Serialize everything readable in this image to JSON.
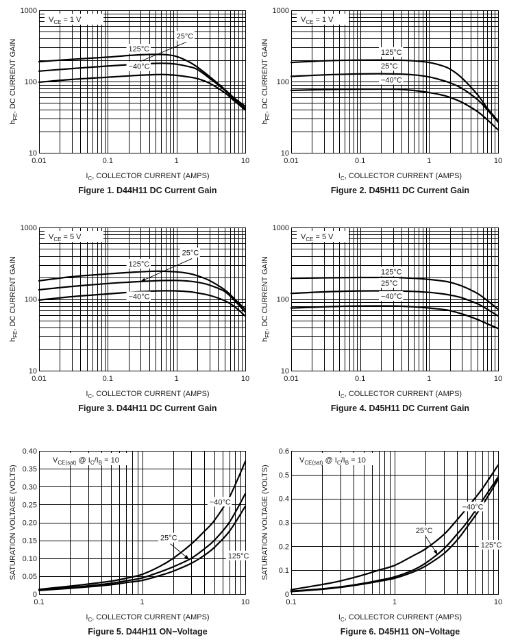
{
  "chart_data": [
    {
      "id": "fig1",
      "type": "line",
      "title": "Figure 1. D44H11 DC Current Gain",
      "xlabel": "I_C, COLLECTOR CURRENT (AMPS)",
      "xlabel_main": "I",
      "xlabel_sub": "C",
      "xlabel_rest": ", COLLECTOR CURRENT (AMPS)",
      "ylabel_main": "h",
      "ylabel_sub": "FE",
      "ylabel_rest": ", DC CURRENT GAIN",
      "xscale": "log",
      "yscale": "log",
      "xlim": [
        0.01,
        10
      ],
      "ylim": [
        10,
        1000
      ],
      "xticks": [
        0.01,
        0.1,
        1,
        10
      ],
      "xtick_labels": [
        "0.01",
        "0.1",
        "1",
        "10"
      ],
      "yticks": [
        10,
        100,
        1000
      ],
      "ytick_labels": [
        "10",
        "100",
        "1000"
      ],
      "grid": true,
      "condition": {
        "main": "V",
        "sub": "CE",
        "rest": " = 1 V"
      },
      "series": [
        {
          "name": "125°C",
          "x": [
            0.01,
            0.03,
            0.1,
            0.2,
            0.4,
            0.7,
            1,
            1.5,
            2,
            3,
            5,
            7,
            10
          ],
          "y": [
            190,
            205,
            220,
            232,
            240,
            238,
            225,
            190,
            160,
            118,
            78,
            58,
            45
          ]
        },
        {
          "name": "25°C",
          "x": [
            0.01,
            0.03,
            0.1,
            0.2,
            0.5,
            0.7,
            1,
            1.5,
            2,
            3,
            5,
            7,
            10
          ],
          "y": [
            140,
            152,
            165,
            172,
            180,
            180,
            175,
            162,
            148,
            112,
            76,
            56,
            42
          ]
        },
        {
          "name": "-40°C",
          "x": [
            0.01,
            0.03,
            0.1,
            0.2,
            0.5,
            0.7,
            1,
            1.5,
            2,
            3,
            5,
            7,
            10
          ],
          "y": [
            98,
            107,
            115,
            120,
            125,
            125,
            122,
            116,
            110,
            95,
            70,
            53,
            40
          ]
        }
      ],
      "annotations": [
        {
          "text": "125°C",
          "x": 0.2,
          "y": 265,
          "arrow": false
        },
        {
          "text": "25°C",
          "x": 1.0,
          "y": 400,
          "arrow": true,
          "arrow_to": [
            0.23,
            173
          ]
        },
        {
          "text": "−40°C",
          "x": 0.2,
          "y": 150,
          "arrow": false
        }
      ]
    },
    {
      "id": "fig2",
      "type": "line",
      "title": "Figure 2. D45H11 DC Current Gain",
      "xlabel": "I_C, COLLECTOR CURRENT (AMPS)",
      "xlabel_main": "I",
      "xlabel_sub": "C",
      "xlabel_rest": ", COLLECTOR CURRENT (AMPS)",
      "ylabel_main": "h",
      "ylabel_sub": "FE",
      "ylabel_rest": ", DC CURRENT GAIN",
      "xscale": "log",
      "yscale": "log",
      "xlim": [
        0.01,
        10
      ],
      "ylim": [
        10,
        1000
      ],
      "xticks": [
        0.01,
        0.1,
        1,
        10
      ],
      "xtick_labels": [
        "0.01",
        "0.1",
        "1",
        "10"
      ],
      "yticks": [
        10,
        100,
        1000
      ],
      "ytick_labels": [
        "10",
        "100",
        "1000"
      ],
      "grid": true,
      "condition": {
        "main": "V",
        "sub": "CE",
        "rest": " = 1 V"
      },
      "series": [
        {
          "name": "125°C",
          "x": [
            0.01,
            0.03,
            0.1,
            0.3,
            0.6,
            1,
            1.5,
            2,
            3,
            5,
            7,
            10
          ],
          "y": [
            185,
            195,
            200,
            200,
            195,
            185,
            168,
            150,
            112,
            66,
            42,
            28
          ]
        },
        {
          "name": "25°C",
          "x": [
            0.01,
            0.03,
            0.1,
            0.3,
            0.6,
            1,
            1.5,
            2,
            3,
            5,
            7,
            10
          ],
          "y": [
            118,
            124,
            128,
            128,
            124,
            116,
            105,
            96,
            80,
            56,
            40,
            27
          ]
        },
        {
          "name": "-40°C",
          "x": [
            0.01,
            0.03,
            0.1,
            0.3,
            0.6,
            1,
            1.5,
            2,
            3,
            5,
            7,
            10
          ],
          "y": [
            75,
            77,
            78,
            78,
            75,
            70,
            65,
            60,
            51,
            38,
            29,
            21
          ]
        }
      ],
      "annotations": [
        {
          "text": "125°C",
          "x": 0.2,
          "y": 238,
          "arrow": false
        },
        {
          "text": "25°C",
          "x": 0.2,
          "y": 152,
          "arrow": false
        },
        {
          "text": "−40°C",
          "x": 0.2,
          "y": 97,
          "arrow": false
        }
      ]
    },
    {
      "id": "fig3",
      "type": "line",
      "title": "Figure 3. D44H11 DC Current Gain",
      "xlabel": "I_C, COLLECTOR CURRENT (AMPS)",
      "xlabel_main": "I",
      "xlabel_sub": "C",
      "xlabel_rest": ", COLLECTOR CURRENT (AMPS)",
      "ylabel_main": "h",
      "ylabel_sub": "FE",
      "ylabel_rest": ", DC CURRENT GAIN",
      "xscale": "log",
      "yscale": "log",
      "xlim": [
        0.01,
        10
      ],
      "ylim": [
        10,
        1000
      ],
      "xticks": [
        0.01,
        0.1,
        1,
        10
      ],
      "xtick_labels": [
        "0.01",
        "0.1",
        "1",
        "10"
      ],
      "yticks": [
        10,
        100,
        1000
      ],
      "ytick_labels": [
        "10",
        "100",
        "1000"
      ],
      "grid": true,
      "condition": {
        "main": "V",
        "sub": "CE",
        "rest": " = 5 V"
      },
      "series": [
        {
          "name": "125°C",
          "x": [
            0.01,
            0.03,
            0.1,
            0.2,
            0.5,
            1,
            1.5,
            2,
            3,
            5,
            7,
            10
          ],
          "y": [
            180,
            205,
            225,
            235,
            245,
            240,
            228,
            212,
            182,
            135,
            100,
            72
          ]
        },
        {
          "name": "25°C",
          "x": [
            0.01,
            0.03,
            0.1,
            0.2,
            0.5,
            1,
            1.5,
            2,
            3,
            5,
            7,
            10
          ],
          "y": [
            135,
            150,
            165,
            172,
            180,
            182,
            178,
            172,
            157,
            128,
            95,
            66
          ]
        },
        {
          "name": "-40°C",
          "x": [
            0.01,
            0.03,
            0.1,
            0.2,
            0.5,
            1,
            1.5,
            2,
            3,
            5,
            7,
            10
          ],
          "y": [
            97,
            108,
            118,
            124,
            130,
            130,
            127,
            122,
            113,
            95,
            78,
            58
          ]
        }
      ],
      "annotations": [
        {
          "text": "125°C",
          "x": 0.2,
          "y": 285,
          "arrow": false
        },
        {
          "text": "25°C",
          "x": 1.2,
          "y": 410,
          "arrow": true,
          "arrow_to": [
            0.3,
            176
          ]
        },
        {
          "text": "−40°C",
          "x": 0.2,
          "y": 100,
          "arrow": false
        }
      ]
    },
    {
      "id": "fig4",
      "type": "line",
      "title": "Figure 4. D45H11 DC Current Gain",
      "xlabel": "I_C, COLLECTOR CURRENT (AMPS)",
      "xlabel_main": "I",
      "xlabel_sub": "C",
      "xlabel_rest": ", COLLECTOR CURRENT (AMPS)",
      "ylabel_main": "h",
      "ylabel_sub": "FE",
      "ylabel_rest": ", DC CURRENT GAIN",
      "xscale": "log",
      "yscale": "log",
      "xlim": [
        0.01,
        10
      ],
      "ylim": [
        10,
        1000
      ],
      "xticks": [
        0.01,
        0.1,
        1,
        10
      ],
      "xtick_labels": [
        "0.01",
        "0.1",
        "1",
        "10"
      ],
      "yticks": [
        10,
        100,
        1000
      ],
      "ytick_labels": [
        "10",
        "100",
        "1000"
      ],
      "grid": true,
      "condition": {
        "main": "V",
        "sub": "CE",
        "rest": " = 5 V"
      },
      "series": [
        {
          "name": "125°C",
          "x": [
            0.01,
            0.03,
            0.1,
            0.3,
            0.6,
            1,
            1.5,
            2,
            3,
            5,
            7,
            10
          ],
          "y": [
            195,
            198,
            200,
            200,
            195,
            188,
            180,
            172,
            152,
            120,
            95,
            72
          ]
        },
        {
          "name": "25°C",
          "x": [
            0.01,
            0.03,
            0.1,
            0.3,
            0.6,
            1,
            1.5,
            2,
            3,
            5,
            7,
            10
          ],
          "y": [
            120,
            126,
            130,
            130,
            128,
            124,
            119,
            114,
            104,
            86,
            72,
            58
          ]
        },
        {
          "name": "-40°C",
          "x": [
            0.01,
            0.03,
            0.1,
            0.3,
            0.6,
            1,
            1.5,
            2,
            3,
            5,
            7,
            10
          ],
          "y": [
            75,
            78,
            80,
            80,
            78,
            75,
            72,
            69,
            62,
            52,
            45,
            39
          ]
        }
      ],
      "annotations": [
        {
          "text": "125°C",
          "x": 0.2,
          "y": 222,
          "arrow": false
        },
        {
          "text": "25°C",
          "x": 0.2,
          "y": 154,
          "arrow": false
        },
        {
          "text": "−40°C",
          "x": 0.2,
          "y": 101,
          "arrow": false
        }
      ]
    },
    {
      "id": "fig5",
      "type": "line",
      "title": "Figure 5. D44H11 ON−Voltage",
      "xlabel": "I_C, COLLECTOR CURRENT (AMPS)",
      "xlabel_main": "I",
      "xlabel_sub": "C",
      "xlabel_rest": ", COLLECTOR CURRENT (AMPS)",
      "ylabel_main": "SATURATION VOLTAGE (VOLTS)",
      "ylabel_sub": "",
      "ylabel_rest": "",
      "xscale": "log",
      "yscale": "linear",
      "xlim": [
        0.1,
        10
      ],
      "ylim": [
        0,
        0.4
      ],
      "xticks": [
        0.1,
        1,
        10
      ],
      "xtick_labels": [
        "0.1",
        "1",
        "10"
      ],
      "yticks": [
        0,
        0.05,
        0.1,
        0.15,
        0.2,
        0.25,
        0.3,
        0.35,
        0.4
      ],
      "ytick_labels": [
        "0",
        "0.05",
        "0.10",
        "0.15",
        "0.20",
        "0.25",
        "0.30",
        "0.35",
        "0.40"
      ],
      "grid": true,
      "condition": {
        "main": "V",
        "sub": "CE(sat)",
        "rest": " @ I",
        "sub2": "C",
        "rest2": "/I",
        "sub3": "B",
        "rest3": " = 10"
      },
      "series": [
        {
          "name": "-40°C",
          "x": [
            0.1,
            0.2,
            0.3,
            0.5,
            0.7,
            1,
            1.5,
            2,
            3,
            4,
            5,
            7,
            10
          ],
          "y": [
            0.013,
            0.022,
            0.028,
            0.036,
            0.044,
            0.055,
            0.078,
            0.1,
            0.14,
            0.175,
            0.205,
            0.27,
            0.37
          ]
        },
        {
          "name": "25°C",
          "x": [
            0.1,
            0.2,
            0.3,
            0.5,
            0.7,
            1,
            1.5,
            2,
            3,
            4,
            5,
            7,
            10
          ],
          "y": [
            0.011,
            0.018,
            0.023,
            0.03,
            0.037,
            0.045,
            0.062,
            0.076,
            0.1,
            0.126,
            0.15,
            0.2,
            0.28
          ]
        },
        {
          "name": "125°C",
          "x": [
            0.1,
            0.2,
            0.3,
            0.5,
            0.7,
            1,
            1.5,
            2,
            3,
            4,
            5,
            7,
            10
          ],
          "y": [
            0.01,
            0.016,
            0.02,
            0.026,
            0.032,
            0.038,
            0.052,
            0.064,
            0.086,
            0.108,
            0.13,
            0.175,
            0.245
          ]
        }
      ],
      "annotations": [
        {
          "text": "−40°C",
          "x": 4.5,
          "y": 0.25,
          "arrow": false
        },
        {
          "text": "25°C",
          "x": 1.5,
          "y": 0.15,
          "arrow": true,
          "arrow_to": [
            2.85,
            0.097
          ]
        },
        {
          "text": "125°C",
          "x": 6.8,
          "y": 0.1,
          "arrow": false
        }
      ]
    },
    {
      "id": "fig6",
      "type": "line",
      "title": "Figure 6. D45H11 ON−Voltage",
      "xlabel": "I_C, COLLECTOR CURRENT (AMPS)",
      "xlabel_main": "I",
      "xlabel_sub": "C",
      "xlabel_rest": ", COLLECTOR CURRENT (AMPS)",
      "ylabel_main": "SATURATION VOLTAGE (VOLTS)",
      "ylabel_sub": "",
      "ylabel_rest": "",
      "xscale": "log",
      "yscale": "linear",
      "xlim": [
        0.1,
        10
      ],
      "ylim": [
        0,
        0.6
      ],
      "xticks": [
        0.1,
        1,
        10
      ],
      "xtick_labels": [
        "0.1",
        "1",
        "10"
      ],
      "yticks": [
        0,
        0.1,
        0.2,
        0.3,
        0.4,
        0.5,
        0.6
      ],
      "ytick_labels": [
        "0",
        "0.1",
        "0.2",
        "0.3",
        "0.4",
        "0.5",
        "0.6"
      ],
      "grid": true,
      "condition": {
        "main": "V",
        "sub": "CE(sat)",
        "rest": " @ I",
        "sub2": "C",
        "rest2": "/I",
        "sub3": "B",
        "rest3": " = 10"
      },
      "series": [
        {
          "name": "-40°C",
          "x": [
            0.1,
            0.2,
            0.3,
            0.5,
            0.7,
            1,
            1.5,
            2,
            3,
            4,
            5,
            7,
            10
          ],
          "y": [
            0.018,
            0.04,
            0.055,
            0.08,
            0.1,
            0.12,
            0.16,
            0.19,
            0.25,
            0.31,
            0.36,
            0.44,
            0.54
          ]
        },
        {
          "name": "25°C",
          "x": [
            0.1,
            0.2,
            0.3,
            0.5,
            0.7,
            1,
            1.5,
            2,
            3,
            4,
            5,
            7,
            10
          ],
          "y": [
            0.012,
            0.022,
            0.03,
            0.045,
            0.057,
            0.072,
            0.1,
            0.13,
            0.19,
            0.25,
            0.3,
            0.39,
            0.49
          ]
        },
        {
          "name": "125°C",
          "x": [
            0.1,
            0.2,
            0.3,
            0.5,
            0.7,
            1,
            1.5,
            2,
            3,
            4,
            5,
            7,
            10
          ],
          "y": [
            0.01,
            0.02,
            0.028,
            0.042,
            0.053,
            0.066,
            0.092,
            0.118,
            0.17,
            0.225,
            0.28,
            0.37,
            0.48
          ]
        }
      ],
      "annotations": [
        {
          "text": "−40°C",
          "x": 4.5,
          "y": 0.355,
          "arrow": false
        },
        {
          "text": "25°C",
          "x": 1.6,
          "y": 0.255,
          "arrow": true,
          "arrow_to": [
            2.6,
            0.165
          ]
        },
        {
          "text": "125°C",
          "x": 6.8,
          "y": 0.195,
          "arrow": false
        }
      ]
    }
  ]
}
